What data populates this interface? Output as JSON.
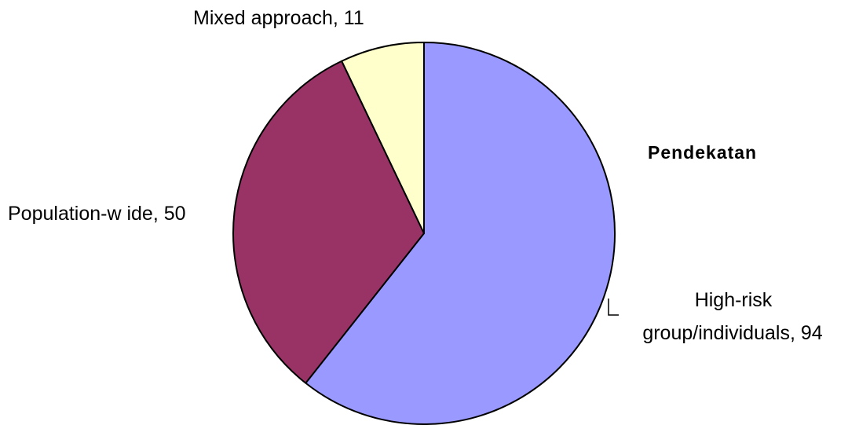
{
  "chart_data": {
    "type": "pie",
    "title": "",
    "legend_title": "Pendekatan",
    "start_angle_deg": 0,
    "direction": "clockwise",
    "slices": [
      {
        "label": "High-risk group/individuals",
        "label_line1": "High-risk",
        "label_line2": "group/individuals, 94",
        "value": 94,
        "color": "#9999FF"
      },
      {
        "label": "Population-w ide",
        "label_text": "Population-w ide, 50",
        "value": 50,
        "color": "#993366"
      },
      {
        "label": "Mixed approach",
        "label_text": "Mixed approach, 11",
        "value": 11,
        "color": "#FFFFCC"
      }
    ],
    "grid": false,
    "legend_placement": "right"
  }
}
